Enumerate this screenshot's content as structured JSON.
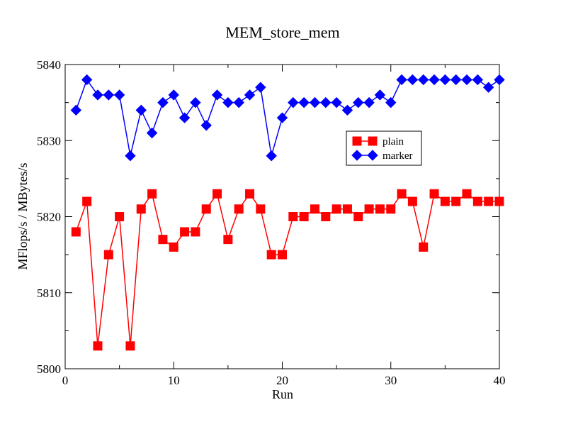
{
  "chart_data": {
    "type": "line",
    "title": "MEM_store_mem",
    "xlabel": "Run",
    "ylabel": "MFlops/s / MBytes/s",
    "xlim": [
      0,
      40
    ],
    "ylim": [
      5800,
      5840
    ],
    "xticks": [
      0,
      10,
      20,
      30,
      40
    ],
    "yticks": [
      5800,
      5810,
      5820,
      5830,
      5840
    ],
    "grid": false,
    "legend_position": "upper-right",
    "x": [
      1,
      2,
      3,
      4,
      5,
      6,
      7,
      8,
      9,
      10,
      11,
      12,
      13,
      14,
      15,
      16,
      17,
      18,
      19,
      20,
      21,
      22,
      23,
      24,
      25,
      26,
      27,
      28,
      29,
      30,
      31,
      32,
      33,
      34,
      35,
      36,
      37,
      38,
      39,
      40
    ],
    "series": [
      {
        "name": "plain",
        "color": "#ff0000",
        "marker": "square",
        "values": [
          5818,
          5822,
          5803,
          5815,
          5820,
          5803,
          5821,
          5823,
          5817,
          5816,
          5818,
          5818,
          5821,
          5823,
          5817,
          5821,
          5823,
          5821,
          5815,
          5815,
          5820,
          5820,
          5821,
          5820,
          5821,
          5821,
          5820,
          5821,
          5821,
          5821,
          5823,
          5822,
          5816,
          5823,
          5822,
          5822,
          5823,
          5822,
          5822,
          5822
        ]
      },
      {
        "name": "marker",
        "color": "#0000ff",
        "marker": "diamond",
        "values": [
          5834,
          5838,
          5836,
          5836,
          5836,
          5828,
          5834,
          5831,
          5835,
          5836,
          5833,
          5835,
          5832,
          5836,
          5835,
          5835,
          5836,
          5837,
          5828,
          5833,
          5835,
          5835,
          5835,
          5835,
          5835,
          5834,
          5835,
          5835,
          5836,
          5835,
          5838,
          5838,
          5838,
          5838,
          5838,
          5838,
          5838,
          5838,
          5837,
          5838
        ]
      }
    ]
  }
}
